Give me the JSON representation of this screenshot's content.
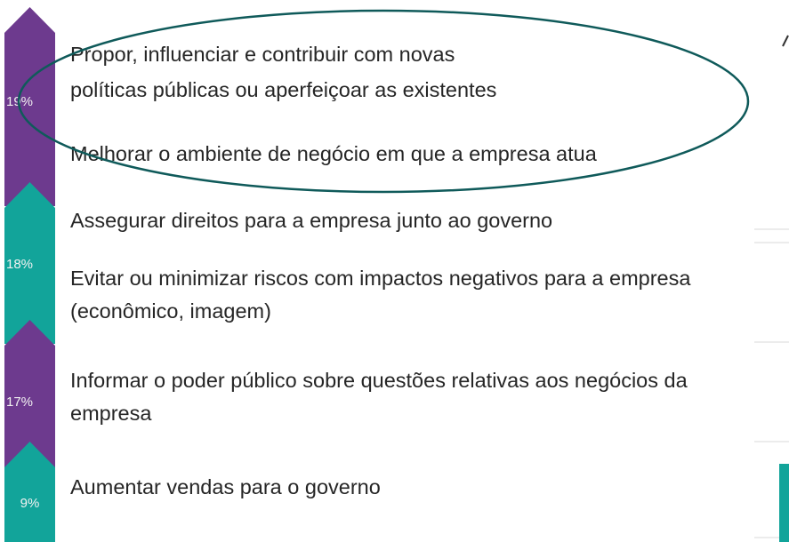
{
  "groups": [
    {
      "percent": "19%",
      "items": [
        {
          "lines": [
            "Propor, influenciar e contribuir com novas",
            "políticas públicas ou aperfeiçoar as existentes"
          ]
        },
        {
          "lines": [
            "Melhorar o ambiente de negócio em que a empresa atua"
          ]
        }
      ]
    },
    {
      "percent": "18%",
      "items": [
        {
          "lines": [
            "Assegurar direitos para a empresa junto ao governo"
          ]
        },
        {
          "lines": [
            "Evitar ou minimizar riscos com impactos negativos para a empresa",
            "(econômico, imagem)"
          ]
        }
      ]
    },
    {
      "percent": "17%",
      "items": [
        {
          "lines": [
            "Informar o poder público sobre questões relativas aos negócios da",
            "empresa"
          ]
        }
      ]
    },
    {
      "percent": "9%",
      "items": [
        {
          "lines": [
            "Aumentar vendas para o governo"
          ]
        }
      ]
    }
  ]
}
